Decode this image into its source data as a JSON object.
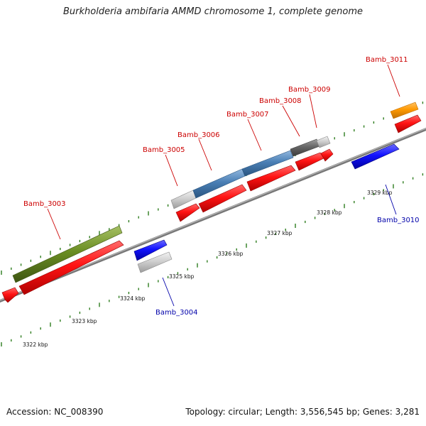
{
  "title": "Burkholderia ambifaria AMMD chromosome 1, complete genome",
  "footer": {
    "accession": "Accession: NC_008390",
    "summary": "Topology: circular; Length: 3,556,545 bp; Genes: 3,281"
  },
  "scale_labels": [
    "3322 kbp",
    "3323 kbp",
    "3324 kbp",
    "3325 kbp",
    "3326 kbp",
    "3327 kbp",
    "3328 kbp",
    "3329 kbp"
  ],
  "genes": [
    {
      "label": "Bamb_3003",
      "label_color": "#cc0000"
    },
    {
      "label": "Bamb_3004",
      "label_color": "#0000aa"
    },
    {
      "label": "Bamb_3005",
      "label_color": "#cc0000"
    },
    {
      "label": "Bamb_3006",
      "label_color": "#cc0000"
    },
    {
      "label": "Bamb_3007",
      "label_color": "#cc0000"
    },
    {
      "label": "Bamb_3008",
      "label_color": "#cc0000"
    },
    {
      "label": "Bamb_3009",
      "label_color": "#cc0000"
    },
    {
      "label": "Bamb_3010",
      "label_color": "#0000aa"
    },
    {
      "label": "Bamb_3011",
      "label_color": "#cc0000"
    }
  ],
  "colors": {
    "backbone": "#8a8a8a",
    "tick": "#2e7d1e",
    "cds_forward": "#ff1010",
    "cds_reverse": "#1010ff",
    "gene_olive": "#6b8e23",
    "gene_steelblue": "#4a7fb5",
    "gene_darkgray": "#666666",
    "gene_lightgray": "#c8c8c8",
    "gene_orange": "#ff9900"
  }
}
